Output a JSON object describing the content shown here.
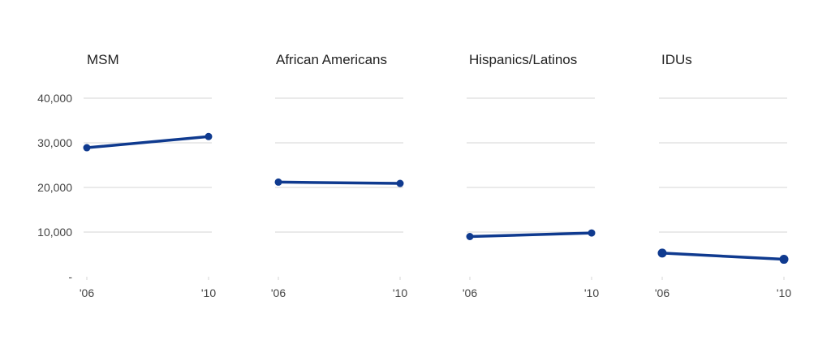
{
  "chart_data": {
    "type": "line",
    "ylim": [
      0,
      40000
    ],
    "y_ticks": [
      {
        "value": 40000,
        "label": "40,000"
      },
      {
        "value": 30000,
        "label": "30,000"
      },
      {
        "value": 20000,
        "label": "20,000"
      },
      {
        "value": 10000,
        "label": "10,000"
      },
      {
        "value": 0,
        "label": "-"
      }
    ],
    "grid": true,
    "line_color": "#0f3a8f",
    "panels": [
      {
        "title": "MSM",
        "x": [
          "'06",
          "'10"
        ],
        "values": [
          28900,
          31400
        ]
      },
      {
        "title": "African Americans",
        "x": [
          "'06",
          "'10"
        ],
        "values": [
          21200,
          20900
        ]
      },
      {
        "title": "Hispanics/Latinos",
        "x": [
          "'06",
          "'10"
        ],
        "values": [
          9000,
          9800
        ]
      },
      {
        "title": "IDUs",
        "x": [
          "'06",
          "'10"
        ],
        "values": [
          5300,
          3900
        ]
      }
    ]
  }
}
